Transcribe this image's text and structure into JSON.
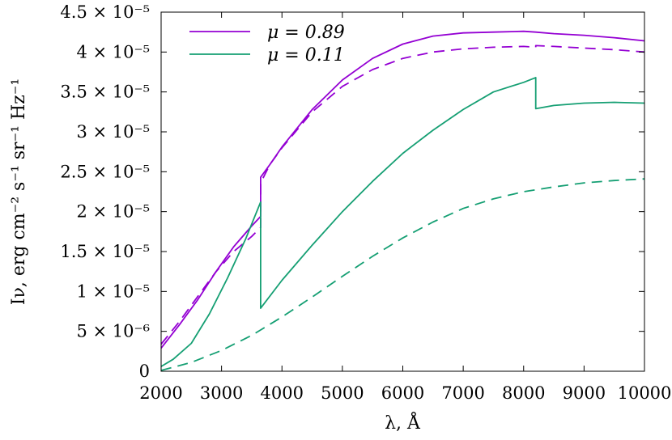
{
  "chart_data": {
    "type": "line",
    "xlabel": "λ, Å",
    "ylabel": "Iν, erg cm⁻² s⁻¹ sr⁻¹ Hz⁻¹",
    "xlim": [
      2000,
      10000
    ],
    "ylim": [
      0,
      4.5e-05
    ],
    "x_ticks": [
      2000,
      3000,
      4000,
      5000,
      6000,
      7000,
      8000,
      9000,
      10000
    ],
    "x_tick_labels": [
      "2000",
      "3000",
      "4000",
      "5000",
      "6000",
      "7000",
      "8000",
      "9000",
      "10000"
    ],
    "y_ticks": [
      0,
      5e-06,
      1e-05,
      1.5e-05,
      2e-05,
      2.5e-05,
      3e-05,
      3.5e-05,
      4e-05,
      4.5e-05
    ],
    "y_tick_labels": [
      "0",
      "5 × 10⁻⁶",
      "1 × 10⁻⁵",
      "1.5 × 10⁻⁵",
      "2 × 10⁻⁵",
      "2.5 × 10⁻⁵",
      "3 × 10⁻⁵",
      "3.5 × 10⁻⁵",
      "4 × 10⁻⁵",
      "4.5 × 10⁻⁵"
    ],
    "grid": false,
    "legend_position": "top-left",
    "series": [
      {
        "name": "μ = 0.89",
        "color": "#9400d3",
        "dash": "solid",
        "x": [
          2000,
          2300,
          2600,
          2900,
          3200,
          3500,
          3647,
          3647,
          3800,
          4000,
          4500,
          5000,
          5500,
          6000,
          6500,
          7000,
          7500,
          8000,
          8200,
          8500,
          9000,
          9500,
          10000
        ],
        "y": [
          2.9e-06,
          5.8e-06,
          8.9e-06,
          1.24e-05,
          1.56e-05,
          1.82e-05,
          1.94e-05,
          2.43e-05,
          2.59e-05,
          2.81e-05,
          3.28e-05,
          3.65e-05,
          3.92e-05,
          4.1e-05,
          4.2e-05,
          4.24e-05,
          4.25e-05,
          4.26e-05,
          4.25e-05,
          4.23e-05,
          4.21e-05,
          4.18e-05,
          4.14e-05
        ]
      },
      {
        "name": "",
        "color": "#9400d3",
        "dash": "dashed",
        "x": [
          2000,
          2300,
          2600,
          2900,
          3200,
          3500,
          3647,
          3647,
          3800,
          4000,
          4500,
          5000,
          5500,
          6000,
          6500,
          7000,
          7500,
          8000,
          8200,
          8200,
          8500,
          9000,
          9500,
          10000
        ],
        "y": [
          3.4e-06,
          6.2e-06,
          9.3e-06,
          1.24e-05,
          1.5e-05,
          1.69e-05,
          1.8e-05,
          2.36e-05,
          2.59e-05,
          2.8e-05,
          3.25e-05,
          3.57e-05,
          3.78e-05,
          3.92e-05,
          4e-05,
          4.04e-05,
          4.06e-05,
          4.07e-05,
          4.06e-05,
          4.08e-05,
          4.07e-05,
          4.05e-05,
          4.03e-05,
          4e-05
        ]
      },
      {
        "name": "μ = 0.11",
        "color": "#159f73",
        "dash": "solid",
        "x": [
          2000,
          2200,
          2500,
          2800,
          3100,
          3400,
          3647,
          3647,
          4000,
          4500,
          5000,
          5500,
          6000,
          6500,
          7000,
          7500,
          8000,
          8200,
          8200,
          8500,
          9000,
          9500,
          10000
        ],
        "y": [
          6e-07,
          1.5e-06,
          3.5e-06,
          7.2e-06,
          1.17e-05,
          1.66e-05,
          2.12e-05,
          7.9e-06,
          1.14e-05,
          1.58e-05,
          2e-05,
          2.38e-05,
          2.73e-05,
          3.02e-05,
          3.28e-05,
          3.5e-05,
          3.62e-05,
          3.68e-05,
          3.29e-05,
          3.33e-05,
          3.36e-05,
          3.37e-05,
          3.36e-05
        ]
      },
      {
        "name": "",
        "color": "#159f73",
        "dash": "dashed",
        "x": [
          2000,
          2500,
          3000,
          3500,
          4000,
          4500,
          5000,
          5500,
          6000,
          6500,
          7000,
          7500,
          8000,
          8500,
          9000,
          9500,
          10000
        ],
        "y": [
          1e-07,
          1.1e-06,
          2.6e-06,
          4.5e-06,
          6.8e-06,
          9.3e-06,
          1.19e-05,
          1.44e-05,
          1.67e-05,
          1.87e-05,
          2.04e-05,
          2.16e-05,
          2.25e-05,
          2.31e-05,
          2.36e-05,
          2.39e-05,
          2.41e-05
        ]
      }
    ]
  }
}
